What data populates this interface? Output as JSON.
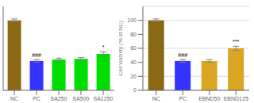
{
  "chart_data": [
    {
      "type": "bar",
      "categories": [
        "NC",
        "PC",
        "SA250",
        "SA500",
        "SA1250"
      ],
      "values": [
        100,
        42,
        44,
        45,
        52
      ],
      "errors": [
        2,
        2,
        2,
        2,
        3
      ],
      "colors": [
        "#8B6914",
        "#3333FF",
        "#00DD00",
        "#00DD00",
        "#00DD00"
      ],
      "annotations": [
        null,
        "###",
        null,
        null,
        "*"
      ],
      "ylim": [
        0,
        120
      ],
      "tick_labels": "x"
    },
    {
      "type": "bar",
      "categories": [
        "NC",
        "PC",
        "EBND50",
        "EBND125"
      ],
      "values": [
        100,
        42,
        42,
        60
      ],
      "errors": [
        2,
        2,
        2,
        3
      ],
      "colors": [
        "#8B6914",
        "#3333FF",
        "#DAA520",
        "#DAA520"
      ],
      "annotations": [
        null,
        "###",
        null,
        "***"
      ],
      "ylabel": "Cell viability (% of NC)",
      "ylim": [
        0,
        120
      ],
      "yticks": [
        0,
        20,
        40,
        60,
        80,
        100
      ],
      "grid": true
    }
  ]
}
